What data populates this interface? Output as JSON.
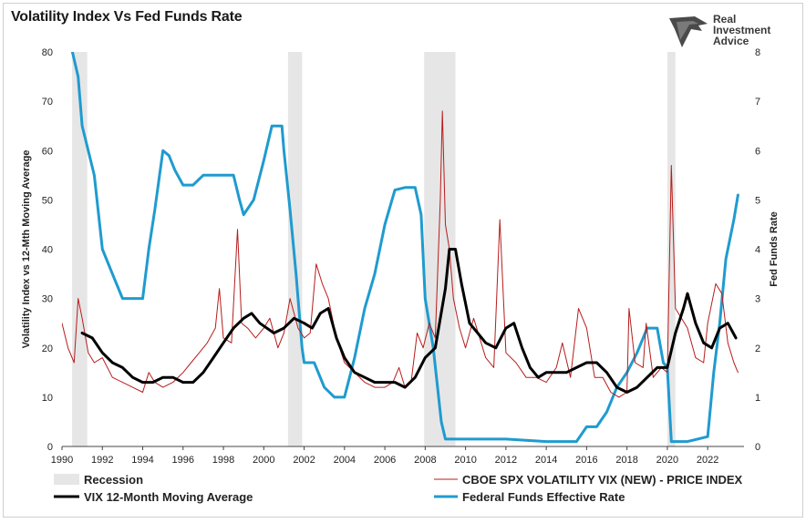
{
  "header": {
    "title": "Volatility Index Vs Fed Funds Rate"
  },
  "logo": {
    "line1": "Real",
    "line2": "Investment",
    "line3": "Advice"
  },
  "colors": {
    "vix": "#b71c1c",
    "vix_ma": "#000000",
    "fed": "#1f9bcf",
    "recession": "#e6e6e6",
    "axis": "#444444"
  },
  "chart_data": {
    "type": "line",
    "x_range": [
      1990,
      2023.8
    ],
    "left_axis": {
      "label": "Volatility Index vs 12-Mth Moving Average",
      "range": [
        0,
        80
      ],
      "ticks": [
        0,
        10,
        20,
        30,
        40,
        50,
        60,
        70,
        80
      ]
    },
    "right_axis": {
      "label": "Fed Funds Rate",
      "range": [
        0,
        8
      ],
      "ticks": [
        0,
        1,
        2,
        3,
        4,
        5,
        6,
        7,
        8
      ]
    },
    "x_ticks": [
      "1990",
      "1992",
      "1994",
      "1996",
      "1998",
      "2000",
      "2002",
      "2004",
      "2006",
      "2008",
      "2010",
      "2012",
      "2014",
      "2016",
      "2018",
      "2020",
      "2022"
    ],
    "recessions": [
      [
        1990.5,
        1991.25
      ],
      [
        2001.2,
        2001.9
      ],
      [
        2007.95,
        2009.5
      ],
      [
        2020.0,
        2020.4
      ]
    ],
    "legend": {
      "recession": "Recession",
      "vix": "CBOE SPX VOLATILITY VIX (NEW) - PRICE INDEX",
      "vix_ma": "VIX 12-Month Moving Average",
      "fed": "Federal Funds Effective Rate"
    },
    "series": [
      {
        "name": "CBOE SPX VOLATILITY VIX (NEW) - PRICE INDEX",
        "axis": "left",
        "x": [
          1990.0,
          1990.3,
          1990.6,
          1990.8,
          1991.0,
          1991.3,
          1991.6,
          1992.0,
          1992.5,
          1993.0,
          1993.5,
          1994.0,
          1994.3,
          1994.6,
          1995.0,
          1995.5,
          1996.0,
          1996.4,
          1996.8,
          1997.2,
          1997.6,
          1997.8,
          1998.0,
          1998.4,
          1998.7,
          1998.9,
          1999.2,
          1999.6,
          2000.0,
          2000.3,
          2000.7,
          2001.0,
          2001.3,
          2001.7,
          2002.0,
          2002.3,
          2002.6,
          2002.9,
          2003.2,
          2003.6,
          2004.0,
          2004.5,
          2005.0,
          2005.5,
          2006.0,
          2006.4,
          2006.7,
          2007.0,
          2007.3,
          2007.6,
          2007.9,
          2008.2,
          2008.5,
          2008.75,
          2008.85,
          2009.0,
          2009.2,
          2009.4,
          2009.7,
          2010.0,
          2010.4,
          2010.7,
          2011.0,
          2011.4,
          2011.7,
          2012.0,
          2012.5,
          2013.0,
          2013.5,
          2014.0,
          2014.5,
          2014.8,
          2015.2,
          2015.6,
          2016.0,
          2016.4,
          2016.8,
          2017.2,
          2017.6,
          2018.0,
          2018.1,
          2018.4,
          2018.8,
          2018.95,
          2019.3,
          2019.7,
          2020.0,
          2020.2,
          2020.4,
          2020.7,
          2021.0,
          2021.4,
          2021.8,
          2022.0,
          2022.4,
          2022.7,
          2023.0,
          2023.3,
          2023.5
        ],
        "values": [
          25,
          20,
          17,
          30,
          26,
          19,
          17,
          18,
          14,
          13,
          12,
          11,
          15,
          13,
          12,
          13,
          15,
          17,
          19,
          21,
          24,
          32,
          22,
          21,
          44,
          25,
          24,
          22,
          24,
          26,
          20,
          23,
          30,
          24,
          22,
          23,
          37,
          33,
          30,
          22,
          17,
          15,
          13,
          12,
          12,
          13,
          16,
          12,
          13,
          23,
          20,
          25,
          22,
          50,
          68,
          45,
          40,
          30,
          24,
          20,
          26,
          22,
          18,
          16,
          46,
          19,
          17,
          14,
          14,
          13,
          16,
          21,
          14,
          28,
          24,
          14,
          14,
          11,
          10,
          11,
          28,
          17,
          16,
          25,
          14,
          16,
          15,
          57,
          28,
          26,
          24,
          18,
          17,
          25,
          33,
          31,
          21,
          17,
          15
        ]
      },
      {
        "name": "VIX 12-Month Moving Average",
        "axis": "left",
        "x": [
          1991.0,
          1991.5,
          1992.0,
          1992.5,
          1993.0,
          1993.5,
          1994.0,
          1994.5,
          1995.0,
          1995.5,
          1996.0,
          1996.5,
          1997.0,
          1997.5,
          1998.0,
          1998.5,
          1999.0,
          1999.4,
          1999.8,
          2000.5,
          2001.0,
          2001.5,
          2002.0,
          2002.4,
          2002.8,
          2003.2,
          2003.6,
          2004.0,
          2004.5,
          2005.0,
          2005.5,
          2006.0,
          2006.5,
          2007.0,
          2007.5,
          2008.0,
          2008.5,
          2009.0,
          2009.2,
          2009.5,
          2009.8,
          2010.2,
          2010.6,
          2011.0,
          2011.5,
          2012.0,
          2012.4,
          2012.8,
          2013.2,
          2013.6,
          2014.0,
          2014.5,
          2015.0,
          2015.5,
          2016.0,
          2016.5,
          2017.0,
          2017.5,
          2018.0,
          2018.5,
          2019.0,
          2019.5,
          2020.0,
          2020.4,
          2020.8,
          2021.0,
          2021.4,
          2021.8,
          2022.2,
          2022.6,
          2023.0,
          2023.4
        ],
        "values": [
          23,
          22,
          19,
          17,
          16,
          14,
          13,
          13,
          14,
          14,
          13,
          13,
          15,
          18,
          21,
          24,
          26,
          27,
          25,
          23,
          24,
          26,
          25,
          24,
          27,
          28,
          22,
          18,
          15,
          14,
          13,
          13,
          13,
          12,
          14,
          18,
          20,
          32,
          40,
          40,
          33,
          25,
          23,
          21,
          20,
          24,
          25,
          20,
          16,
          14,
          15,
          15,
          15,
          16,
          17,
          17,
          15,
          12,
          11,
          12,
          14,
          16,
          16,
          23,
          28,
          31,
          25,
          21,
          20,
          24,
          25,
          22
        ]
      },
      {
        "name": "Federal Funds Effective Rate",
        "axis": "right",
        "x": [
          1990.0,
          1990.4,
          1990.8,
          1991.0,
          1991.3,
          1991.6,
          1992.0,
          1992.5,
          1993.0,
          1993.5,
          1994.0,
          1994.3,
          1994.6,
          1995.0,
          1995.3,
          1995.6,
          1996.0,
          1996.5,
          1997.0,
          1997.5,
          1998.0,
          1998.5,
          1998.8,
          1999.0,
          1999.5,
          2000.0,
          2000.4,
          2000.9,
          2001.0,
          2001.3,
          2001.6,
          2001.9,
          2002.0,
          2002.5,
          2003.0,
          2003.5,
          2004.0,
          2004.5,
          2005.0,
          2005.5,
          2006.0,
          2006.5,
          2007.0,
          2007.5,
          2007.8,
          2008.0,
          2008.4,
          2008.8,
          2009.0,
          2010.0,
          2012.0,
          2014.0,
          2015.5,
          2016.0,
          2016.5,
          2017.0,
          2017.5,
          2018.0,
          2018.5,
          2019.0,
          2019.5,
          2019.8,
          2020.0,
          2020.2,
          2020.4,
          2021.0,
          2022.0,
          2022.3,
          2022.6,
          2022.9,
          2023.3,
          2023.5
        ],
        "values": [
          8.2,
          8.2,
          7.5,
          6.5,
          6.0,
          5.5,
          4.0,
          3.5,
          3.0,
          3.0,
          3.0,
          4.0,
          4.8,
          6.0,
          5.9,
          5.6,
          5.3,
          5.3,
          5.5,
          5.5,
          5.5,
          5.5,
          5.0,
          4.7,
          5.0,
          5.8,
          6.5,
          6.5,
          6.0,
          4.8,
          3.5,
          2.0,
          1.7,
          1.7,
          1.2,
          1.0,
          1.0,
          1.8,
          2.8,
          3.5,
          4.5,
          5.2,
          5.25,
          5.25,
          4.7,
          3.0,
          2.0,
          0.5,
          0.15,
          0.15,
          0.15,
          0.1,
          0.1,
          0.4,
          0.4,
          0.7,
          1.2,
          1.5,
          1.9,
          2.4,
          2.4,
          1.7,
          1.6,
          0.1,
          0.1,
          0.1,
          0.2,
          1.5,
          2.5,
          3.8,
          4.6,
          5.1
        ]
      }
    ]
  }
}
